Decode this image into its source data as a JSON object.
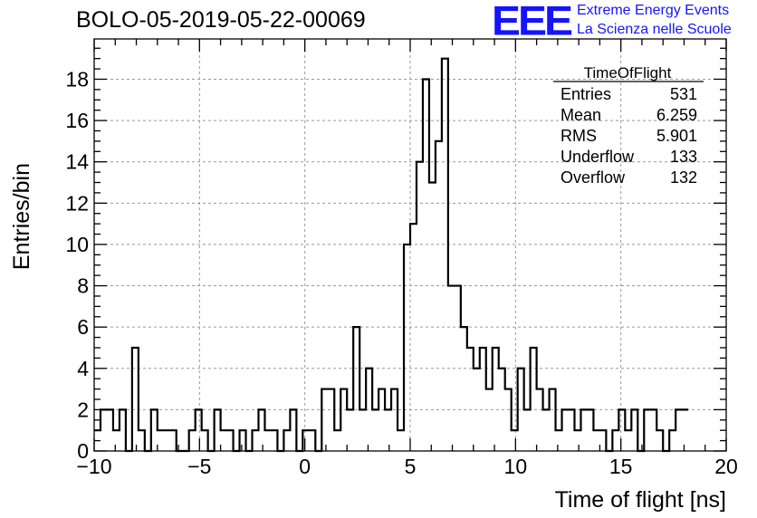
{
  "title": "BOLO-05-2019-05-22-00069",
  "logo": {
    "mark": "EEE",
    "line1": "Extreme Energy Events",
    "line2": "La Scienza nelle Scuole",
    "color": "#1414ff"
  },
  "stats": {
    "name": "TimeOfFlight",
    "rows": [
      {
        "label": "Entries",
        "value": "531"
      },
      {
        "label": "Mean",
        "value": "6.259"
      },
      {
        "label": "RMS",
        "value": "5.901"
      },
      {
        "label": "Underflow",
        "value": "133"
      },
      {
        "label": "Overflow",
        "value": "132"
      }
    ]
  },
  "chart_data": {
    "type": "histogram",
    "xlabel": "Time of flight [ns]",
    "ylabel": "Entries/bin",
    "xlim": [
      -10,
      20
    ],
    "ylim": [
      0,
      19.95
    ],
    "bin_width": 0.3,
    "x_ticks": [
      -10,
      -5,
      0,
      5,
      10,
      15,
      20
    ],
    "y_ticks": [
      0,
      2,
      4,
      6,
      8,
      10,
      12,
      14,
      16,
      18
    ],
    "grid": true,
    "line_color": "#000000",
    "counts": [
      1,
      2,
      2,
      1,
      2,
      0,
      5,
      1,
      0,
      2,
      1,
      1,
      1,
      0,
      0,
      1,
      2,
      1,
      0,
      2,
      1,
      1,
      0,
      1,
      0,
      1,
      2,
      1,
      1,
      0,
      1,
      2,
      0,
      1,
      1,
      0,
      3,
      3,
      1,
      3,
      2,
      6,
      2,
      4,
      2,
      3,
      2,
      3,
      1,
      10,
      11,
      14,
      18,
      13,
      15,
      19,
      8,
      8,
      6,
      5,
      4,
      5,
      3,
      5,
      4,
      3,
      1,
      4,
      2,
      5,
      3,
      2,
      3,
      1,
      2,
      2,
      1,
      2,
      2,
      1,
      1,
      0,
      1,
      2,
      1,
      2,
      0,
      2,
      2,
      1,
      0,
      1,
      2,
      2
    ]
  }
}
